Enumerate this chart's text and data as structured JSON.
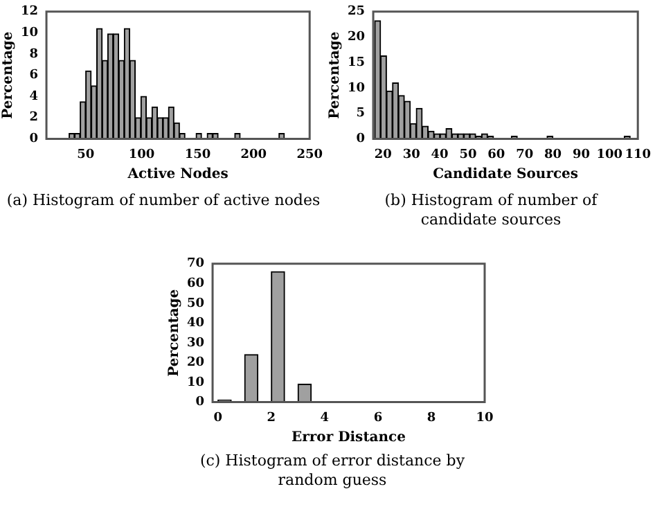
{
  "chart_data": [
    {
      "type": "histogram",
      "xlabel": "Active Nodes",
      "ylabel": "Percentage",
      "color": "#a0a0a0",
      "bins": [
        35.2,
        40.1,
        45.1,
        50.0,
        55.0,
        59.9,
        64.8,
        69.7,
        74.6,
        79.6,
        84.5,
        89.4,
        94.4,
        99.3,
        104.2,
        109.2,
        114.1,
        119.0,
        123.9,
        128.9,
        133.8,
        138.7,
        143.7,
        148.6,
        153.5,
        158.5,
        163.4,
        168.3,
        173.2,
        178.2,
        183.1,
        188.0,
        193.0,
        197.9,
        202.8,
        207.7,
        212.7,
        217.6,
        222.5,
        227.5
      ],
      "values": [
        0.5,
        0.5,
        3.5,
        6.4,
        5.0,
        10.4,
        7.4,
        9.9,
        9.9,
        7.4,
        10.4,
        7.4,
        2.0,
        4.0,
        2.0,
        3.0,
        2.0,
        2.0,
        3.0,
        1.5,
        0.5,
        0,
        0,
        0.5,
        0,
        0.5,
        0.5,
        0,
        0,
        0,
        0.5,
        0,
        0,
        0,
        0,
        0,
        0,
        0,
        0.5
      ],
      "xlim": [
        15,
        250
      ],
      "xticks": [
        50,
        100,
        150,
        200,
        250
      ],
      "ylim": [
        0,
        12
      ],
      "yticks": [
        0,
        2,
        4,
        6,
        8,
        10,
        12
      ],
      "annotations": [
        "(a) Histogram of number of active nodes"
      ]
    },
    {
      "type": "histogram",
      "xlabel": "Candidate Sources",
      "ylabel": "Percentage",
      "color": "#a0a0a0",
      "bins": [
        17.0,
        19.1,
        21.2,
        23.3,
        25.4,
        27.5,
        29.6,
        31.7,
        33.8,
        35.9,
        38.0,
        40.1,
        42.2,
        44.3,
        46.4,
        48.5,
        50.6,
        52.7,
        54.8,
        56.9,
        59.0,
        61.1,
        63.2,
        65.3,
        67.4,
        69.5,
        71.6,
        73.7,
        75.8,
        77.9,
        80.0,
        82.1,
        84.2,
        86.3,
        88.4,
        90.5,
        92.6,
        94.7,
        96.8,
        98.9,
        101.0,
        103.1,
        105.2,
        107.3
      ],
      "values": [
        23.2,
        16.3,
        9.4,
        11.0,
        8.5,
        7.4,
        3.0,
        6.0,
        2.5,
        1.5,
        1.0,
        1.0,
        2.0,
        1.0,
        1.0,
        1.0,
        1.0,
        0.5,
        1.0,
        0.5,
        0,
        0,
        0,
        0.5,
        0,
        0,
        0,
        0,
        0,
        0.5,
        0,
        0,
        0,
        0,
        0,
        0,
        0,
        0,
        0,
        0,
        0,
        0,
        0.5
      ],
      "xlim": [
        16.5,
        110
      ],
      "xticks": [
        20,
        30,
        40,
        50,
        60,
        70,
        80,
        90,
        100,
        110
      ],
      "ylim": [
        0,
        25
      ],
      "yticks": [
        0,
        5,
        10,
        15,
        20,
        25
      ],
      "annotations": [
        "(b) Histogram of number of candidate sources"
      ]
    },
    {
      "type": "histogram",
      "xlabel": "Error Distance",
      "ylabel": "Percentage",
      "color": "#a0a0a0",
      "bins": [
        0,
        0.5,
        1,
        1.5,
        2,
        2.5,
        3,
        3.5
      ],
      "values": [
        1,
        0,
        24,
        0,
        66,
        0,
        9
      ],
      "xlim": [
        -0.2,
        10
      ],
      "xticks": [
        0,
        2,
        4,
        6,
        8,
        10
      ],
      "ylim": [
        0,
        70
      ],
      "yticks": [
        0,
        10,
        20,
        30,
        40,
        50,
        60,
        70
      ],
      "annotations": [
        "(c) Histogram of error distance by random guess"
      ]
    }
  ]
}
